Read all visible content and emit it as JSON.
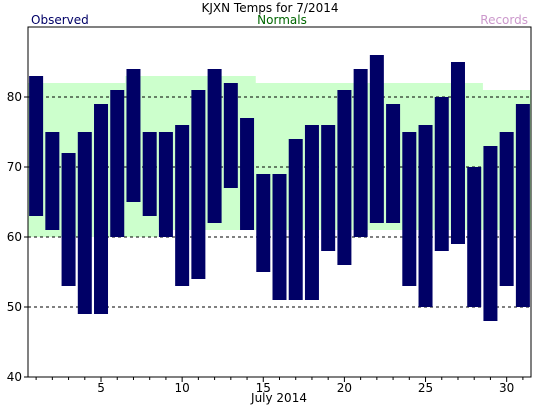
{
  "chart_data": {
    "type": "bar",
    "title": "KJXN Temps for 7/2014",
    "xlabel": "July 2014",
    "ylabel": "",
    "legend": {
      "observed": "Observed",
      "normals": "Normals",
      "records": "Records",
      "placement": "top"
    },
    "colors": {
      "observed": "#000066",
      "normals_text": "#006600",
      "normals_fill": "#ccffcc",
      "records": "#cc99cc",
      "grid": "#000000"
    },
    "xlim": [
      0.5,
      31.5
    ],
    "ylim": [
      40,
      90
    ],
    "yticks": [
      40,
      50,
      60,
      70,
      80
    ],
    "xticks": [
      5,
      10,
      15,
      20,
      25,
      30
    ],
    "grid": "horizontal-dashed",
    "days": [
      1,
      2,
      3,
      4,
      5,
      6,
      7,
      8,
      9,
      10,
      11,
      12,
      13,
      14,
      15,
      16,
      17,
      18,
      19,
      20,
      21,
      22,
      23,
      24,
      25,
      26,
      27,
      28,
      29,
      30,
      31
    ],
    "series": [
      {
        "name": "Observed",
        "low": [
          63,
          61,
          53,
          49,
          49,
          60,
          65,
          63,
          60,
          53,
          54,
          62,
          67,
          61,
          55,
          51,
          51,
          51,
          58,
          56,
          60,
          62,
          62,
          53,
          50,
          58,
          59,
          50,
          48,
          53,
          50
        ],
        "high": [
          83,
          75,
          72,
          75,
          79,
          81,
          84,
          75,
          75,
          76,
          81,
          84,
          82,
          77,
          69,
          69,
          74,
          76,
          76,
          81,
          84,
          86,
          79,
          75,
          76,
          80,
          85,
          70,
          73,
          75,
          79
        ]
      },
      {
        "name": "Normals",
        "low": [
          60,
          60,
          60,
          60,
          60,
          60,
          60,
          60,
          61,
          61,
          61,
          61,
          61,
          61,
          61,
          61,
          61,
          61,
          61,
          61,
          61,
          61,
          61,
          61,
          61,
          61,
          61,
          61,
          61,
          61,
          61
        ],
        "high": [
          82,
          82,
          82,
          82,
          82,
          82,
          83,
          83,
          83,
          83,
          83,
          83,
          83,
          83,
          82,
          82,
          82,
          82,
          82,
          82,
          82,
          82,
          82,
          82,
          82,
          82,
          82,
          82,
          81,
          81,
          81
        ]
      }
    ]
  }
}
